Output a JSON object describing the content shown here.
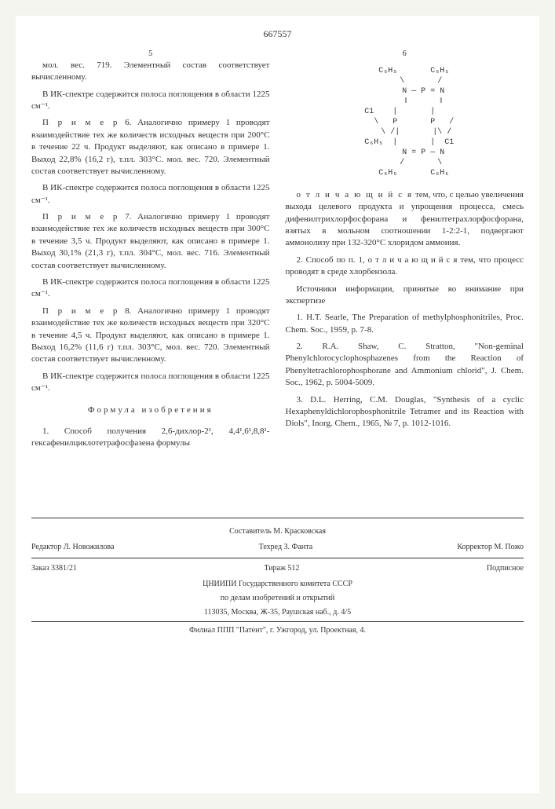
{
  "doc_number": "667557",
  "page_left": "5",
  "page_right": "6",
  "left_col": {
    "p1": "мол. вес. 719. Элементный состав соответствует вычисленному.",
    "p2": "В ИК-спектре содержится полоса поглощения в области 1225 см⁻¹.",
    "p3_label": "П р и м е р",
    "p3_num": "6.",
    "p3": "Аналогично примеру 1 проводят взаимодействие тех же количеств исходных веществ при 200°С в течение 22 ч. Продукт выделяют, как описано в примере 1. Выход 22,8% (16,2 г), т.пл. 303°С. мол. вес. 720. Элементный состав соответствует вычисленному.",
    "p4": "В ИК-спектре содержится полоса поглощения в области 1225 см⁻¹.",
    "p5_label": "П р и м е р",
    "p5_num": "7.",
    "p5": "Аналогично примеру 1 проводят взаимодействие тех же количеств исходных веществ при 300°С в течение 3,5 ч. Продукт выделяют, как описано в примере 1. Выход 30,1% (21,3 г), т.пл. 304°С, мол. вес. 716. Элементный состав соответствует вычисленному.",
    "p6": "В ИК-спектре содержится полоса поглощения в области 1225 см⁻¹.",
    "p7_label": "П р и м е р",
    "p7_num": "8.",
    "p7": "Аналогично примеру 1 проводят взаимодействие тех же количеств исходных веществ при 320°С в течение 4,5 ч. Продукт выделяют, как описано в примере 1. Выход 16,2% (11,6 г) т.пл. 303°С, мол. вес. 720. Элементный состав соответствует вычисленному.",
    "p8": "В ИК-спектре содержится полоса поглощения в области 1225 см⁻¹.",
    "formula_title": "Формула изобретения",
    "claim1": "1. Способ получения 2,6-дихлор-2¹, 4,4¹,6¹,8,8¹-гексафенилциклотетрафосфазена формулы"
  },
  "right_col": {
    "structure": "    C₆H₅       C₆H₅\n       \\       /\n        N — P = N\n        ‖       ‖\n  C1    |       |    \n    \\   P       P   /\n     \\ /|       |\\ /\n  C₆H₅  |       |  C1\n        N = P — N\n       /       \\\n    C₆H₅       C₆H₅",
    "p1_label": "о т л и ч а ю щ и й с я",
    "p1": "тем, что, с целью увеличения выхода целевого продукта и упрощения процесса, смесь дифенилтрихлорфосфорана и фенилтетрахлорфосфорана, взятых в мольном соотношении 1-2:2-1, подвергают аммонолизу при 132-320°С хлоридом аммония.",
    "p2": "2. Способ по п. 1, о т л и ч а ю щ и й с я  тем, что процесс проводят в среде хлорбензола.",
    "sources_title": "Источники информации, принятые во внимание при экспертизе",
    "ref1": "1. H.T. Searle, The Preparation of methylphosphonitriles, Proc. Chem. Soc., 1959, p. 7-8.",
    "ref2": "2. R.A. Shaw, C. Stratton, \"Non-geminal Phenylchlorocyclophosphazenes from the Reaction of Phenyltetrachlorophosphorane and Ammonium chlorid\", J. Chem. Soc., 1962, p. 5004-5009.",
    "ref3": "3. D.L. Herring, C.M. Douglas, \"Synthesis of a cyclic Hexaphenyldichlorophosphonitrile Tetramer and its Reaction with Diols\", Inorg. Chem., 1965, № 7, p. 1012-1016."
  },
  "footer": {
    "compiler_label": "Составитель",
    "compiler": "М. Красковская",
    "editor_label": "Редактор",
    "editor": "Л. Новожилова",
    "techred_label": "Техред",
    "techred": "З. Фанта",
    "corrector_label": "Корректор",
    "corrector": "М. Пожо",
    "order": "Заказ 3381/21",
    "tirazh": "Тираж 512",
    "podpisnoe": "Подписное",
    "org1": "ЦНИИПИ Государственного комитета СССР",
    "org2": "по делам изобретений и открытий",
    "addr1": "113035, Москва, Ж-35, Раушская наб., д. 4/5",
    "addr2": "Филиал ППП \"Патент\", г. Ужгород, ул. Проектная, 4."
  }
}
